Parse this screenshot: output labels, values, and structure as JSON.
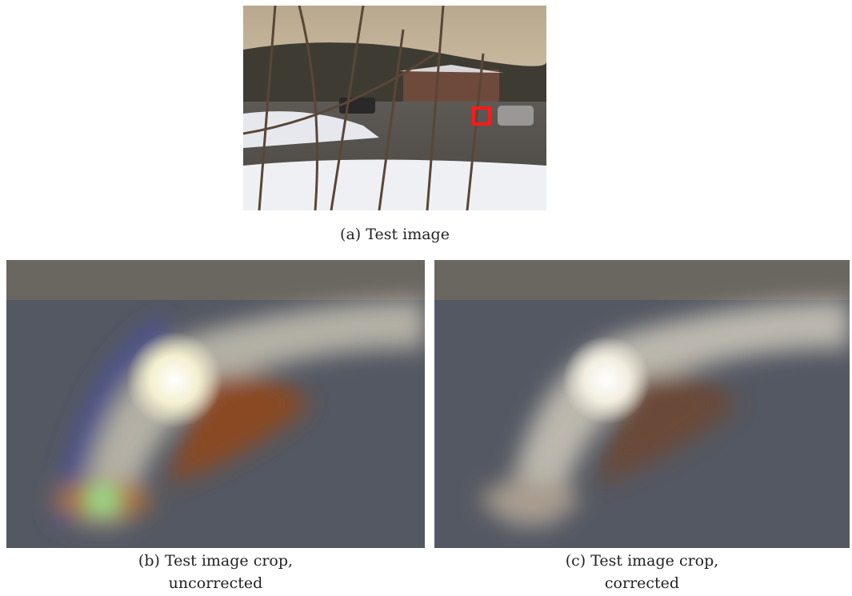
{
  "figure": {
    "subfigures": [
      {
        "label": "(a)",
        "lines": [
          "Test image"
        ]
      },
      {
        "label": "(b)",
        "lines": [
          "Test image crop,",
          "uncorrected"
        ]
      },
      {
        "label": "(c)",
        "lines": [
          "Test image crop,",
          "corrected"
        ]
      }
    ]
  }
}
